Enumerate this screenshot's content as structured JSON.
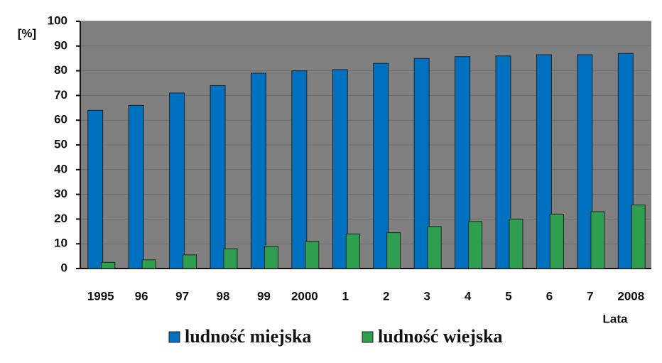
{
  "chart_data": {
    "type": "bar",
    "y_label": "[%]",
    "x_label": "Lata",
    "categories": [
      "1995",
      "96",
      "97",
      "98",
      "99",
      "2000",
      "1",
      "2",
      "3",
      "4",
      "5",
      "6",
      "7",
      "2008"
    ],
    "series": [
      {
        "name": "ludność miejska",
        "color": "#0070c0",
        "values": [
          64,
          66,
          71,
          74,
          79,
          80,
          80.5,
          83,
          85,
          85.7,
          86,
          86.5,
          86.5,
          87
        ]
      },
      {
        "name": "ludność wiejska",
        "color": "#2e9e4f",
        "values": [
          2.5,
          3.5,
          5.5,
          8,
          9,
          11,
          14,
          14.5,
          17,
          19,
          20,
          22,
          23,
          25.7
        ]
      }
    ],
    "ylim": [
      0,
      100
    ],
    "yticks": [
      0,
      10,
      20,
      30,
      40,
      50,
      60,
      70,
      80,
      90,
      100
    ],
    "grid": true
  }
}
